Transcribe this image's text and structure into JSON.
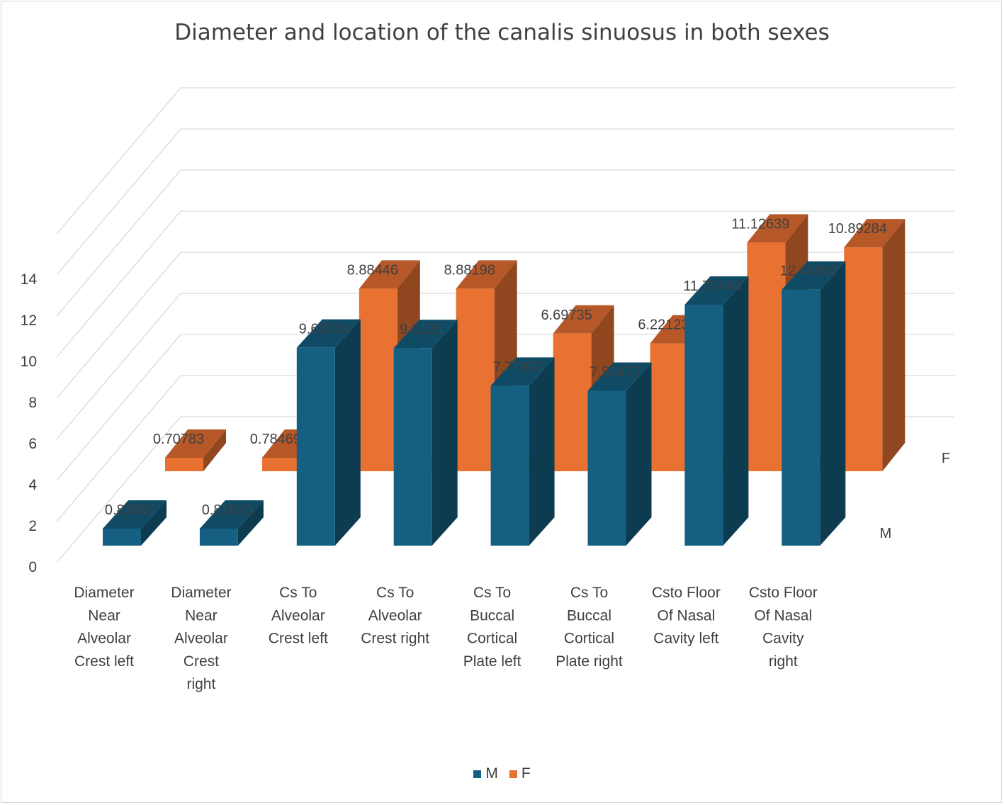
{
  "chart_data": {
    "type": "bar",
    "title": "Diameter and location of the canalis sinuosus in both sexes",
    "categories": [
      "Diameter Near Alveolar Crest  left",
      "Diameter Near Alveolar Crest right",
      "Cs To Alveolar Crest left",
      "Cs To Alveolar Crest right",
      "Cs To Buccal Cortical Plate left",
      "Cs To Buccal Cortical Plate right",
      "Csto Floor Of Nasal Cavity left",
      "Csto Floor Of Nasal Cavity right"
    ],
    "category_lines": [
      [
        "Diameter",
        "Near",
        "Alveolar",
        "Crest  left"
      ],
      [
        "Diameter",
        "Near",
        "Alveolar",
        "Crest",
        "right"
      ],
      [
        "Cs To",
        "Alveolar",
        "Crest left"
      ],
      [
        "Cs To",
        "Alveolar",
        "Crest right"
      ],
      [
        "Cs To",
        "Buccal",
        "Cortical",
        "Plate left"
      ],
      [
        "Cs To",
        "Buccal",
        "Cortical",
        "Plate right"
      ],
      [
        "Csto Floor",
        "Of Nasal",
        "Cavity left"
      ],
      [
        "Csto Floor",
        "Of Nasal",
        "Cavity",
        "right"
      ]
    ],
    "series": [
      {
        "name": "M",
        "color": "#156082",
        "values": [
          0.82067,
          0.81623,
          9.63214,
          9.6125,
          7.77957,
          7.53477,
          11.72443,
          12.45837
        ],
        "labels": [
          "0.82067",
          "0.81623",
          "9.63214",
          "9.6125",
          "7.77957",
          "7.53477",
          "11.72443",
          "12.45837"
        ]
      },
      {
        "name": "F",
        "color": "#E97132",
        "values": [
          0.70783,
          0.78469,
          8.88446,
          8.88198,
          6.69735,
          6.22123,
          11.12639,
          10.89284
        ],
        "labels": [
          "0.70783",
          "0.78469",
          "8.88446",
          "8.88198",
          "6.69735",
          "6.22123",
          "11.12639",
          "10.89284"
        ]
      }
    ],
    "yticks": [
      "0",
      "2",
      "4",
      "6",
      "8",
      "10",
      "12",
      "14"
    ],
    "ylim": [
      0,
      14
    ],
    "grid": true,
    "legend_position": "bottom"
  }
}
